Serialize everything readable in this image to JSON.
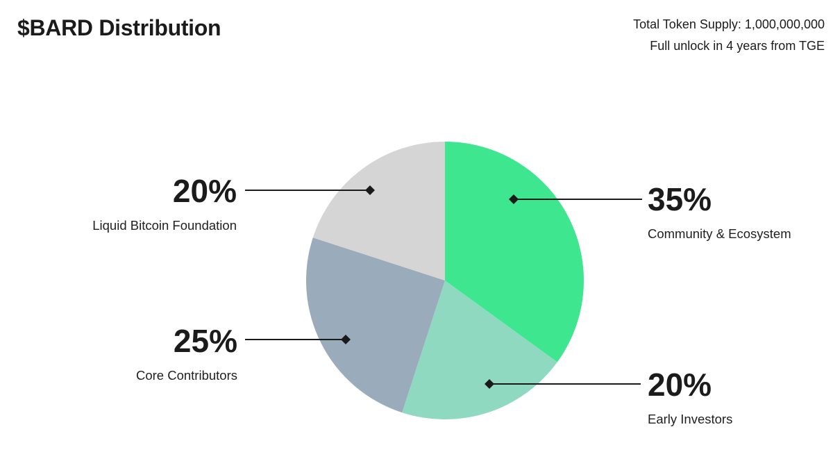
{
  "chart_data": {
    "type": "pie",
    "title": "$BARD Distribution",
    "annotations": [
      "Total Token Supply: 1,000,000,000",
      "Full unlock in 4 years from TGE"
    ],
    "start_angle_deg": 0,
    "direction": "clockwise",
    "legend_position": "callouts-around-pie",
    "slices": [
      {
        "label": "Community & Ecosystem",
        "value": 35,
        "percent_label": "35%",
        "color": "#3EE68F"
      },
      {
        "label": "Early Investors",
        "value": 20,
        "percent_label": "20%",
        "color": "#8FD9C0"
      },
      {
        "label": "Core Contributors",
        "value": 25,
        "percent_label": "25%",
        "color": "#9AABBC"
      },
      {
        "label": "Liquid Bitcoin Foundation",
        "value": 20,
        "percent_label": "20%",
        "color": "#D5D5D5"
      }
    ],
    "colors": {
      "leader_line": "#1A1A1A",
      "text": "#1B1B1B",
      "background": "#FFFFFF"
    }
  }
}
